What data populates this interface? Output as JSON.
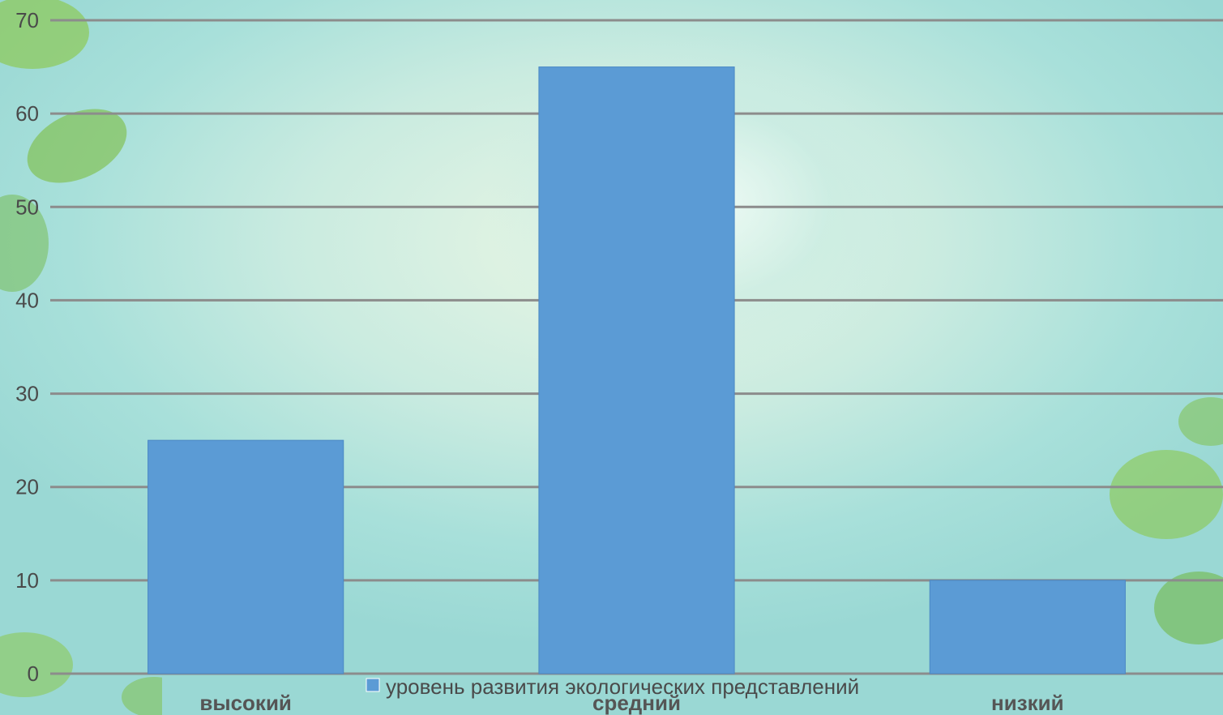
{
  "chart_data": {
    "type": "bar",
    "categories": [
      "высокий",
      "средний",
      "низкий"
    ],
    "series": [
      {
        "name": "уровень развития экологических представлений",
        "values": [
          25,
          65,
          10
        ]
      }
    ],
    "title": "",
    "xlabel": "",
    "ylabel": "",
    "ylim": [
      0,
      70
    ],
    "yticks": [
      0,
      10,
      20,
      30,
      40,
      50,
      60,
      70
    ],
    "grid": true,
    "legend_position": "bottom",
    "bar_color": "#5b9bd5",
    "grid_color": "#8c8c8c"
  }
}
